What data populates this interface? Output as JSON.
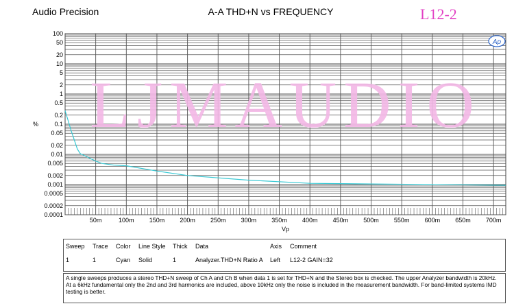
{
  "header": {
    "brand": "Audio Precision",
    "title": "A-A THD+N vs FREQUENCY",
    "model": "L12-2"
  },
  "watermark": "LJMAUDIO",
  "logo_text": "Ap",
  "colors": {
    "trace": "#39c9d4",
    "watermark": "#f3b8e6",
    "model": "#e23fc4"
  },
  "chart_data": {
    "type": "line",
    "title": "A-A THD+N vs FREQUENCY",
    "xlabel": "Vp",
    "ylabel": "%",
    "yscale": "log",
    "ylim": [
      0.0001,
      100
    ],
    "xlim": [
      0,
      0.72
    ],
    "y_ticks": [
      "100",
      "50",
      "20",
      "10",
      "5",
      "2",
      "1",
      "0.5",
      "0.2",
      "0.1",
      "0.05",
      "0.02",
      "0.01",
      "0.005",
      "0.002",
      "0.001",
      "0.0005",
      "0.0002",
      "0.0001"
    ],
    "y_tick_values": [
      100,
      50,
      20,
      10,
      5,
      2,
      1,
      0.5,
      0.2,
      0.1,
      0.05,
      0.02,
      0.01,
      0.005,
      0.002,
      0.001,
      0.0005,
      0.0002,
      0.0001
    ],
    "x_ticks": [
      "50m",
      "100m",
      "150m",
      "200m",
      "250m",
      "300m",
      "350m",
      "400m",
      "450m",
      "500m",
      "550m",
      "600m",
      "650m",
      "700m"
    ],
    "x_tick_values": [
      0.05,
      0.1,
      0.15,
      0.2,
      0.25,
      0.3,
      0.35,
      0.4,
      0.45,
      0.5,
      0.55,
      0.6,
      0.65,
      0.7
    ],
    "grid": true,
    "series": [
      {
        "x": [
          0.0,
          0.005,
          0.01,
          0.015,
          0.02,
          0.025,
          0.03,
          0.04,
          0.05,
          0.06,
          0.08,
          0.1,
          0.15,
          0.2,
          0.3,
          0.4,
          0.5,
          0.6,
          0.72
        ],
        "y": [
          0.28,
          0.13,
          0.06,
          0.03,
          0.015,
          0.0105,
          0.0095,
          0.0075,
          0.006,
          0.005,
          0.0044,
          0.0042,
          0.0028,
          0.002,
          0.0014,
          0.0011,
          0.00105,
          0.001,
          0.00095
        ]
      }
    ]
  },
  "legend_table": {
    "headers": [
      "Sweep",
      "Trace",
      "Color",
      "Line Style",
      "Thick",
      "Data",
      "Axis",
      "Comment"
    ],
    "row": [
      "1",
      "1",
      "Cyan",
      "Solid",
      "1",
      "Analyzer.THD+N Ratio A",
      "Left",
      "L12-2 GAIN=32"
    ]
  },
  "note": "A single sweeps produces a stereo THD+N sweep of Ch A and Ch B when data 1 is set for THD+N and the Stereo box is checked.  The upper Analyzer bandwidth is 20kHz.  At a 6kHz fundamental only the 2nd and 3rd harmonics are included, above 10kHz only the noise is included in the measurement bandwidth.  For band-limited systems IMD testing is better."
}
